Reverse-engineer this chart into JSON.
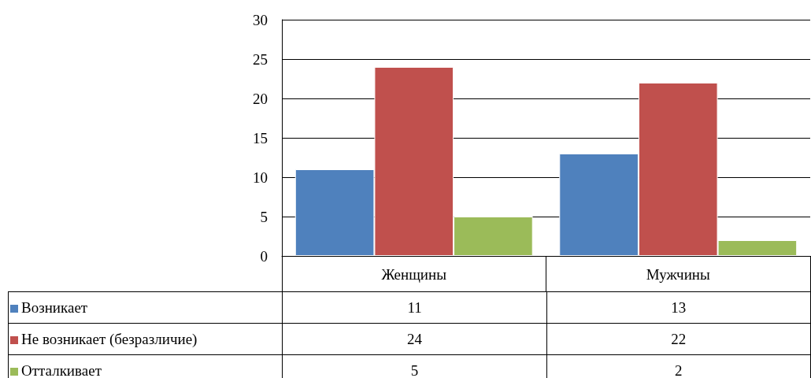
{
  "chart_data": {
    "type": "bar",
    "categories": [
      "Женщины",
      "Мужчины"
    ],
    "series": [
      {
        "name": "Возникает",
        "color": "#4f81bd",
        "values": [
          11,
          13
        ]
      },
      {
        "name": "Не возникает (безразличие)",
        "color": "#c0504d",
        "values": [
          24,
          22
        ]
      },
      {
        "name": "Отталкивает",
        "color": "#9bbb59",
        "values": [
          5,
          2
        ]
      }
    ],
    "ylim": [
      0,
      30
    ],
    "yticks": [
      0,
      5,
      10,
      15,
      20,
      25,
      30
    ],
    "grid": "y",
    "legend": "bottom",
    "data_labels": true
  }
}
